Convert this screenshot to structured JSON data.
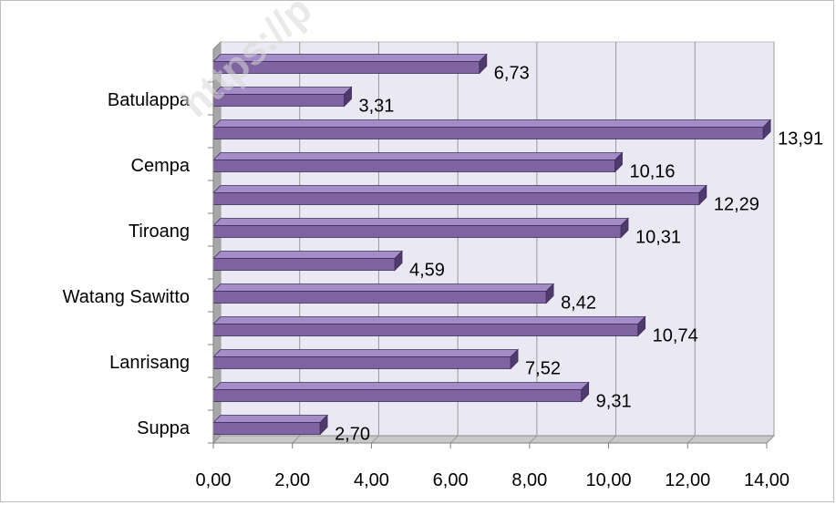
{
  "chart_data": {
    "type": "bar",
    "orientation": "horizontal",
    "style": "3d-clustered-bar",
    "categories_bottom_to_top": [
      "Suppa",
      "",
      "Lanrisang",
      "",
      "Watang Sawitto",
      "",
      "Tiroang",
      "",
      "Cempa",
      "",
      "Batulappa",
      ""
    ],
    "values_bottom_to_top": [
      2.7,
      9.31,
      7.52,
      10.74,
      8.42,
      4.59,
      10.31,
      12.29,
      10.16,
      13.91,
      3.31,
      6.73
    ],
    "data_labels_bottom_to_top": [
      "2,70",
      "9,31",
      "7,52",
      "10,74",
      "8,42",
      "4,59",
      "10,31",
      "12,29",
      "10,16",
      "13,91",
      "3,31",
      "6,73"
    ],
    "category_labels": [
      "Suppa",
      "Lanrisang",
      "Watang Sawitto",
      "Tiroang",
      "Cempa",
      "Batulappa"
    ],
    "xlim": [
      0,
      14
    ],
    "x_ticks": [
      0,
      2,
      4,
      6,
      8,
      10,
      12,
      14
    ],
    "x_tick_labels": [
      "0,00",
      "2,00",
      "4,00",
      "6,00",
      "8,00",
      "10,00",
      "12,00",
      "14,00"
    ],
    "grid": "vertical",
    "title": "",
    "xlabel": "",
    "ylabel": "",
    "colors": {
      "bar_face": "#8064a2",
      "bar_top": "#a48cc6",
      "bar_side": "#4f3a6e",
      "bar_outline": "#3f2c5c",
      "wall": "#eae8f2",
      "floor": "#c9c9c9",
      "gridline": "#9a9a9a"
    }
  },
  "watermark": "https://p"
}
